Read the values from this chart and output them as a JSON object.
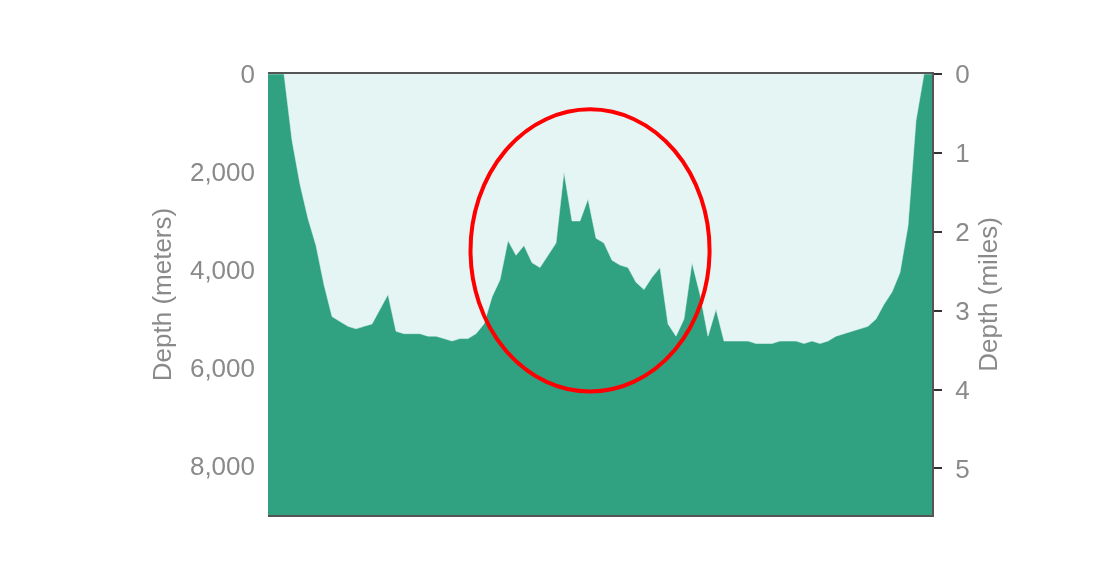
{
  "chart_data": {
    "type": "area",
    "ylabel": "Depth (meters)",
    "y2label": "Depth (miles)",
    "categories": [
      null,
      null,
      null,
      null,
      null,
      null,
      null,
      null,
      null,
      null,
      null,
      null,
      null,
      null,
      null,
      null,
      null,
      null,
      null,
      null,
      null,
      null,
      null,
      null,
      null,
      null,
      null,
      null,
      null,
      null,
      null,
      null,
      null,
      null,
      null,
      null,
      null,
      null,
      null,
      null,
      null,
      null,
      null,
      null,
      null,
      null,
      null,
      null,
      null,
      null,
      null,
      null,
      null,
      null,
      null,
      null,
      null,
      null,
      null,
      null,
      null,
      null,
      null,
      null,
      null,
      null,
      null,
      null,
      null,
      null,
      null,
      null,
      null,
      null,
      null,
      null,
      null,
      null,
      null,
      null,
      null,
      null,
      null,
      null
    ],
    "series": [
      {
        "color": "#e4f5f4",
        "values": [
          0,
          0,
          0,
          1350,
          2250,
          2950,
          3500,
          4300,
          4950,
          5050,
          5150,
          5200,
          5150,
          5100,
          4800,
          4500,
          5250,
          5300,
          5300,
          5300,
          5350,
          5350,
          5400,
          5450,
          5400,
          5400,
          5300,
          5100,
          4550,
          4200,
          3400,
          3700,
          3500,
          3850,
          3950,
          3700,
          3450,
          2000,
          3000,
          3000,
          2550,
          3350,
          3450,
          3800,
          3900,
          3950,
          4250,
          4400,
          4150,
          3950,
          5100,
          5350,
          5000,
          3850,
          4500,
          5350,
          4800,
          5450,
          5450,
          5450,
          5450,
          5500,
          5500,
          5500,
          5450,
          5450,
          5450,
          5500,
          5450,
          5500,
          5450,
          5350,
          5300,
          5250,
          5200,
          5150,
          5000,
          4700,
          4450,
          4050,
          3100,
          950,
          0,
          0
        ]
      }
    ],
    "ylim": [
      9000,
      0
    ],
    "yticks": [
      {
        "value": 0,
        "label": "0"
      },
      {
        "value": 2000,
        "label": "2,000"
      },
      {
        "value": 4000,
        "label": "4,000"
      },
      {
        "value": 6000,
        "label": "6,000"
      },
      {
        "value": 8000,
        "label": "8,000"
      }
    ],
    "y2lim": [
      5.59,
      0
    ],
    "y2ticks": [
      0,
      1,
      2,
      3,
      4,
      5
    ],
    "tick_labels": "y",
    "grid": false
  }
}
